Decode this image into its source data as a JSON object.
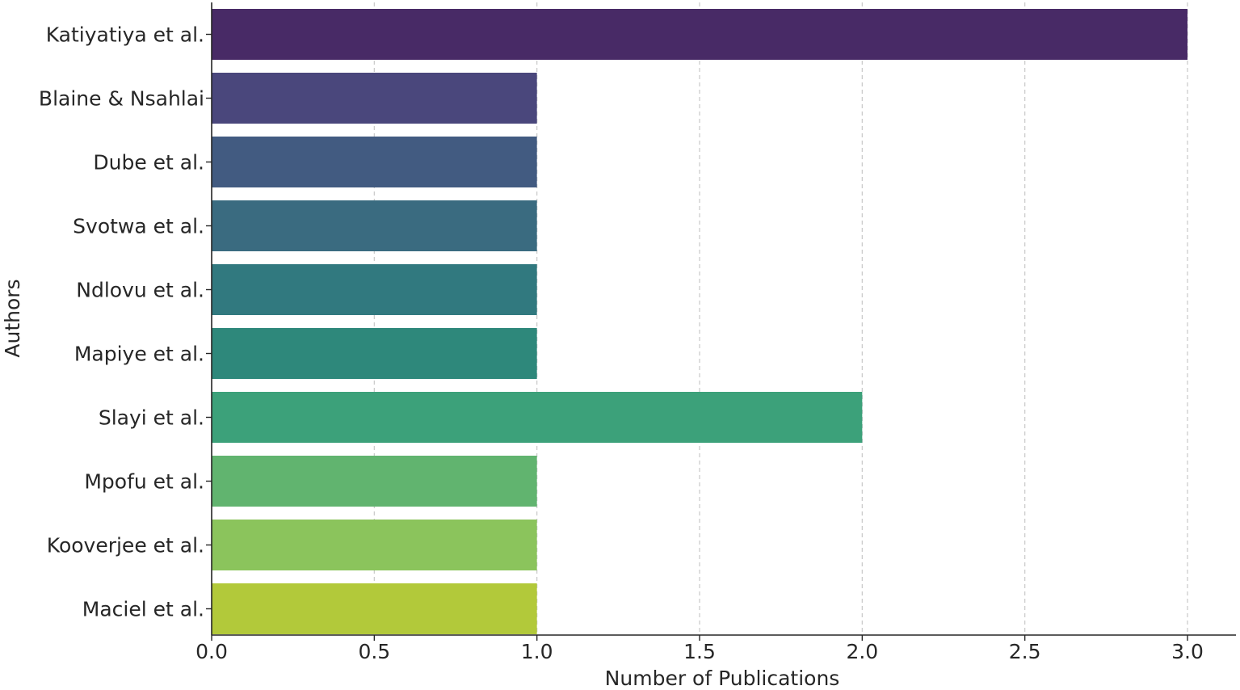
{
  "chart_data": {
    "type": "bar",
    "orientation": "horizontal",
    "categories": [
      "Katiyatiya et al.",
      "Blaine & Nsahlai",
      "Dube et al.",
      "Svotwa et al.",
      "Ndlovu et al.",
      "Mapiye et al.",
      "Slayi et al.",
      "Mpofu et al.",
      "Kooverjee et al.",
      "Maciel et al."
    ],
    "values": [
      3,
      1,
      1,
      1,
      1,
      1,
      2,
      1,
      1,
      1
    ],
    "colors": [
      "#482a66",
      "#4a477c",
      "#425b81",
      "#3a6b80",
      "#31797f",
      "#2e887b",
      "#3ca17a",
      "#61b46f",
      "#8bc45c",
      "#b2c93a"
    ],
    "xlabel": "Number of Publications",
    "ylabel": "Authors",
    "xlim": [
      0,
      3.15
    ],
    "xticks": [
      0.0,
      0.5,
      1.0,
      1.5,
      2.0,
      2.5,
      3.0
    ],
    "xtick_labels": [
      "0.0",
      "0.5",
      "1.0",
      "1.5",
      "2.0",
      "2.5",
      "3.0"
    ],
    "grid": "x-dashed",
    "legend": "none"
  }
}
